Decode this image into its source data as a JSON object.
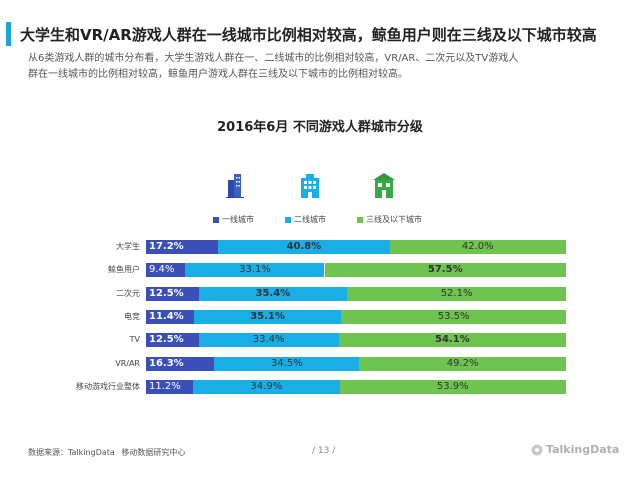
{
  "header": {
    "title": "大学生和VR/AR游戏人群在一线城市比例相对较高，鲸鱼用户则在三线及以下城市较高",
    "description": [
      "从6类游戏人群的城市分布看，大学生游戏人群在一、二线城市的比例相对较高，VR/AR、二次元以及TV游戏人",
      "群在一线城市的比例相对较高，鲸鱼用户游戏人群在三线及以下城市的比例相对较高。"
    ],
    "accent_color": "#1aa3e0"
  },
  "chart_data": {
    "type": "bar",
    "orientation": "horizontal",
    "stacked": true,
    "title": "2016年6月 不同游戏人群城市分级",
    "categories": [
      "大学生",
      "鲸鱼用户",
      "二次元",
      "电竞",
      "TV",
      "VR/AR",
      "移动游戏行业整体"
    ],
    "series": [
      {
        "name": "一线城市",
        "color": "#3a4fb8",
        "values": [
          17.2,
          9.4,
          12.5,
          11.4,
          12.5,
          16.3,
          11.2
        ],
        "labels": [
          "17.2%",
          "9.4%",
          "12.5%",
          "11.4%",
          "12.5%",
          "16.3%",
          "11.2%"
        ]
      },
      {
        "name": "二线城市",
        "color": "#19aee6",
        "values": [
          40.8,
          33.1,
          35.4,
          35.1,
          33.4,
          34.5,
          34.9
        ],
        "labels": [
          "40.8%",
          "33.1%",
          "35.4%",
          "35.1%",
          "33.4%",
          "34.5%",
          "34.9%"
        ]
      },
      {
        "name": "三线及以下城市",
        "color": "#6ec44e",
        "values": [
          42.0,
          57.5,
          52.1,
          53.5,
          54.1,
          49.2,
          53.9
        ],
        "labels": [
          "42.0%",
          "57.5%",
          "52.1%",
          "53.5%",
          "54.1%",
          "49.2%",
          "53.9%"
        ]
      }
    ],
    "bold_labels": [
      [
        true,
        true,
        false
      ],
      [
        false,
        false,
        true
      ],
      [
        true,
        true,
        false
      ],
      [
        true,
        true,
        false
      ],
      [
        true,
        false,
        true
      ],
      [
        true,
        false,
        false
      ],
      [
        false,
        false,
        false
      ]
    ],
    "xlim": [
      0,
      100
    ],
    "legend": "top-center",
    "icons": [
      "city-skyline-icon",
      "office-building-icon",
      "shop-building-icon"
    ]
  },
  "footer": {
    "source_label": "数据来源：TalkingData",
    "source_org": "移动数据研究中心",
    "page": "/ 13 /",
    "brand": "TalkingData"
  }
}
